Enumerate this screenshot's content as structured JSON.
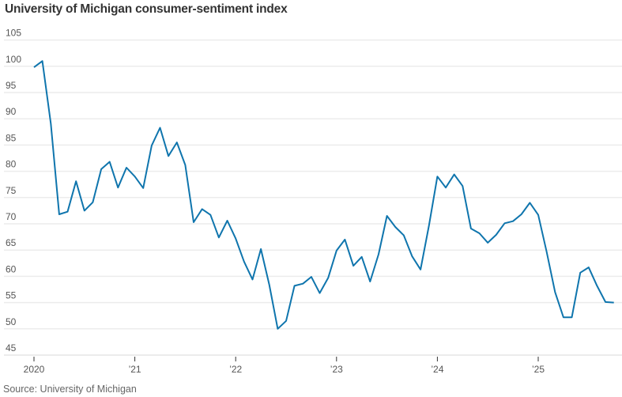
{
  "chart_data": {
    "type": "line",
    "title": "University of Michigan consumer-sentiment index",
    "source": "Source: University of Michigan",
    "xlabel": "",
    "ylabel": "",
    "ylim": [
      45,
      105
    ],
    "yticks": [
      45,
      50,
      55,
      60,
      65,
      70,
      75,
      80,
      85,
      90,
      95,
      100,
      105
    ],
    "xticks": [
      {
        "label": "2020",
        "year": 2020
      },
      {
        "label": "’21",
        "year": 2021
      },
      {
        "label": "’22",
        "year": 2022
      },
      {
        "label": "’23",
        "year": 2023
      },
      {
        "label": "’24",
        "year": 2024
      },
      {
        "label": "’25",
        "year": 2025
      }
    ],
    "grid": true,
    "color": "#0f75ad",
    "series": [
      {
        "name": "Consumer sentiment",
        "start": "2020-01",
        "frequency": "monthly",
        "values": [
          99.8,
          101.0,
          89.1,
          71.8,
          72.3,
          78.1,
          72.5,
          74.1,
          80.4,
          81.8,
          76.9,
          80.7,
          79.0,
          76.8,
          84.9,
          88.3,
          82.9,
          85.5,
          81.2,
          70.3,
          72.8,
          71.7,
          67.4,
          70.6,
          67.2,
          62.8,
          59.4,
          65.2,
          58.4,
          50.0,
          51.5,
          58.2,
          58.6,
          59.9,
          56.8,
          59.7,
          64.9,
          67.0,
          62.0,
          63.7,
          59.0,
          64.2,
          71.5,
          69.4,
          67.8,
          63.8,
          61.3,
          69.7,
          79.0,
          76.9,
          79.4,
          77.2,
          69.1,
          68.2,
          66.4,
          67.9,
          70.1,
          70.5,
          71.8,
          74.0,
          71.7,
          64.7,
          57.0,
          52.2,
          52.2,
          60.7,
          61.7,
          58.2,
          55.1,
          55.0
        ]
      }
    ]
  }
}
